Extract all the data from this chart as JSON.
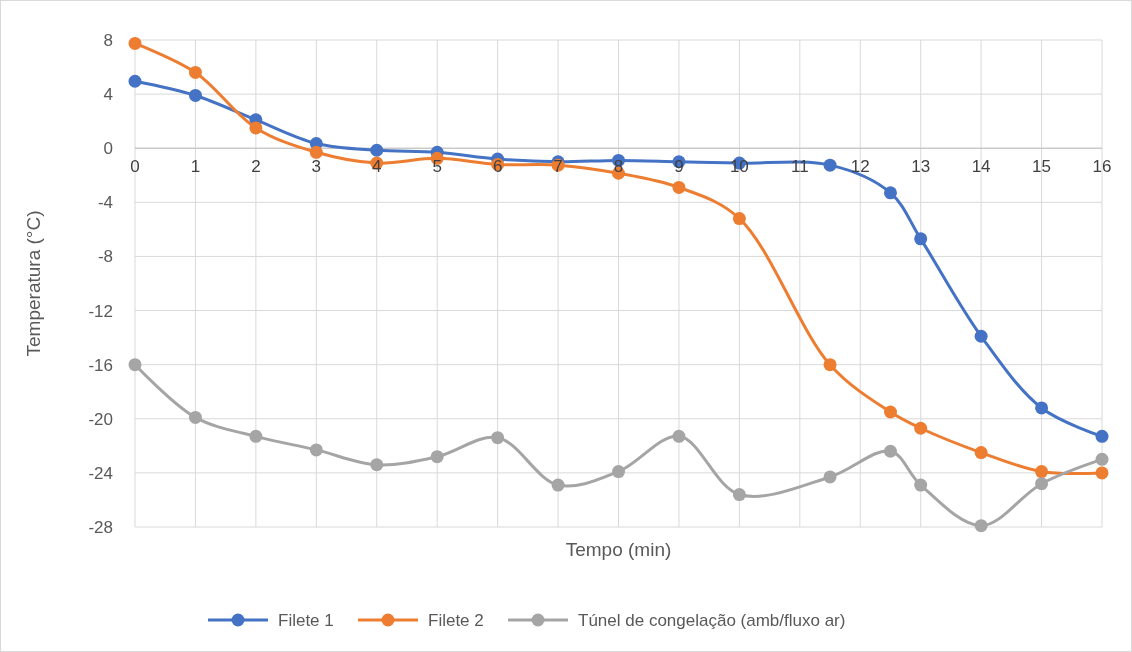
{
  "chart_data": {
    "type": "line",
    "xlabel": "Tempo (min)",
    "ylabel": "Temperatura (°C)",
    "xlim": [
      0,
      16
    ],
    "xticks": [
      0,
      1,
      2,
      3,
      4,
      5,
      6,
      7,
      8,
      9,
      10,
      11,
      12,
      13,
      14,
      15,
      16
    ],
    "ylim": [
      -28,
      8
    ],
    "yticks": [
      -28,
      -24,
      -20,
      -16,
      -12,
      -8,
      -4,
      0,
      4,
      8
    ],
    "grid": true,
    "legend": "bottom",
    "marker": "circle",
    "line_style": "solid",
    "x": [
      0,
      1,
      2,
      3,
      4,
      5,
      6,
      7,
      8,
      9,
      10,
      11.5,
      12.5,
      13,
      14,
      15,
      16
    ],
    "series": [
      {
        "name": "Filete 1",
        "color": "#4472c4",
        "values": [
          4.95,
          3.9,
          2.1,
          0.35,
          -0.15,
          -0.3,
          -0.8,
          -1.0,
          -0.9,
          -1.0,
          -1.1,
          -1.25,
          -3.3,
          -6.7,
          -13.9,
          -19.2,
          -21.3
        ]
      },
      {
        "name": "Filete 2",
        "color": "#ed7d31",
        "values": [
          7.75,
          5.6,
          1.5,
          -0.3,
          -1.1,
          -0.75,
          -1.2,
          -1.25,
          -1.85,
          -2.9,
          -5.2,
          -16.0,
          -19.5,
          -20.7,
          -22.5,
          -23.9,
          -24.0
        ]
      },
      {
        "name": "Túnel de congelação (amb/fluxo ar)",
        "color": "#a5a5a5",
        "values": [
          -16.0,
          -19.9,
          -21.3,
          -22.3,
          -23.4,
          -22.8,
          -21.4,
          -24.9,
          -23.9,
          -21.3,
          -25.6,
          -24.3,
          -22.4,
          -24.9,
          -27.9,
          -24.8,
          -23.0
        ]
      }
    ]
  }
}
